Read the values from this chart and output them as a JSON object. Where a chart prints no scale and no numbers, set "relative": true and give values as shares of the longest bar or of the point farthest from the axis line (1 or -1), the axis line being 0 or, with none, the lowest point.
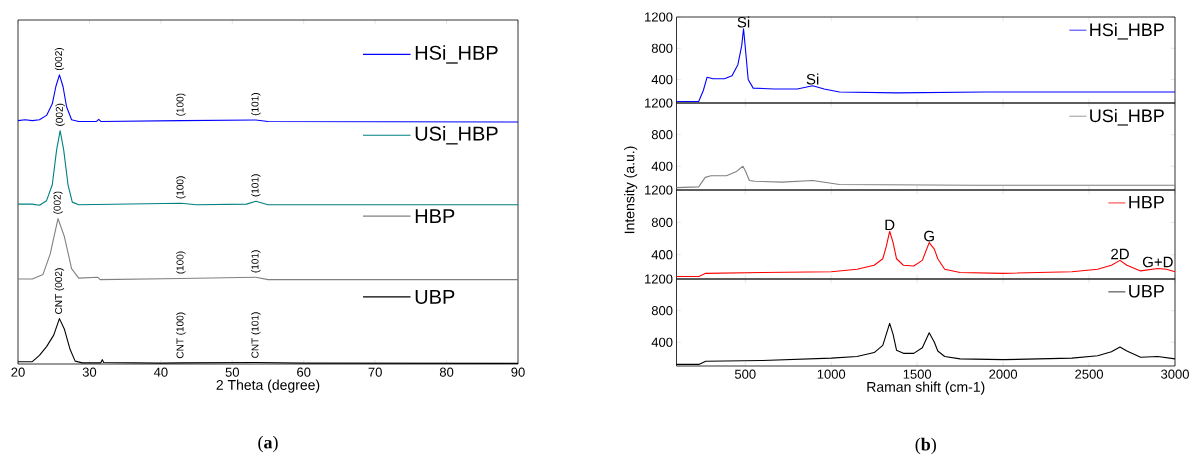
{
  "chart_data": [
    {
      "type": "line",
      "relative": true,
      "xlabel": "2 Theta (degree)",
      "xlim": [
        20,
        90
      ],
      "xticks": [
        20,
        30,
        40,
        50,
        60,
        70,
        80,
        90
      ],
      "legend": "right",
      "series": [
        {
          "name": "HSi_HBP",
          "color": "#0000ff",
          "x": [
            20,
            21,
            22,
            23,
            24,
            24.8,
            25.3,
            25.8,
            26.3,
            26.8,
            27.5,
            28.5,
            31,
            31.3,
            31.6,
            42.8,
            53.3,
            55,
            90
          ],
          "values": [
            0.842,
            0.845,
            0.842,
            0.845,
            0.86,
            0.9,
            0.96,
            1.0,
            0.96,
            0.89,
            0.845,
            0.839,
            0.839,
            0.846,
            0.839,
            0.842,
            0.844,
            0.839,
            0.837
          ]
        },
        {
          "name": "USi_HBP",
          "color": "#008080",
          "x": [
            20,
            22,
            23,
            24,
            24.8,
            25.4,
            25.9,
            26.4,
            27,
            27.6,
            28.5,
            42.8,
            45,
            52,
            53.3,
            55,
            90
          ],
          "values": [
            0.553,
            0.553,
            0.549,
            0.565,
            0.62,
            0.74,
            0.807,
            0.74,
            0.62,
            0.56,
            0.551,
            0.556,
            0.551,
            0.553,
            0.563,
            0.551,
            0.551
          ]
        },
        {
          "name": "HBP",
          "color": "#808080",
          "x": [
            20,
            22,
            23.5,
            24.5,
            25.6,
            26.5,
            27.5,
            28.5,
            31.2,
            31.5,
            42.8,
            53.3,
            55,
            90
          ],
          "values": [
            0.294,
            0.294,
            0.31,
            0.38,
            0.503,
            0.44,
            0.33,
            0.297,
            0.3,
            0.292,
            0.296,
            0.3,
            0.292,
            0.292
          ]
        },
        {
          "name": "UBP",
          "color": "#000000",
          "x": [
            20,
            22,
            23,
            24,
            25,
            25.8,
            26.5,
            27.3,
            28,
            29,
            31.6,
            31.8,
            32,
            40,
            42.8,
            53.3,
            60,
            90
          ],
          "values": [
            0.008,
            0.008,
            0.03,
            0.06,
            0.1,
            0.157,
            0.12,
            0.05,
            0.01,
            0.004,
            0.004,
            0.015,
            0.005,
            0.003,
            0.004,
            0.005,
            0.003,
            0.002
          ]
        }
      ],
      "annotations": [
        {
          "text": "(002)",
          "x": 25.8,
          "y": 1.0
        },
        {
          "text": "(100)",
          "x": 42.8,
          "y": 0.842
        },
        {
          "text": "(101)",
          "x": 53.3,
          "y": 0.844
        },
        {
          "text": "(002)",
          "x": 25.9,
          "y": 0.807
        },
        {
          "text": "(100)",
          "x": 42.8,
          "y": 0.556
        },
        {
          "text": "(101)",
          "x": 53.3,
          "y": 0.563
        },
        {
          "text": "(002)",
          "x": 25.6,
          "y": 0.503
        },
        {
          "text": "(100)",
          "x": 42.8,
          "y": 0.296
        },
        {
          "text": "(101)",
          "x": 53.3,
          "y": 0.3
        },
        {
          "text": "CNT (002)",
          "x": 25.8,
          "y": 0.157
        },
        {
          "text": "CNT (100)",
          "x": 42.8,
          "y": 0.004
        },
        {
          "text": "CNT (101)",
          "x": 53.3,
          "y": 0.005
        },
        "(**a**)"
      ]
    },
    {
      "type": "line",
      "xlim": [
        100,
        3000
      ],
      "xticks": [
        500,
        1000,
        1500,
        2000,
        2500,
        3000
      ],
      "ylim": [
        100,
        1200
      ],
      "yticks": [
        400,
        800,
        1200
      ],
      "tick_labels": "y",
      "legend": "top right",
      "series": [
        {
          "name": "HSi_HBP",
          "color": "#0000ff",
          "x": [
            100,
            229,
            256,
            278,
            312,
            379,
            423,
            457,
            479,
            490,
            501,
            517,
            546,
            669,
            803,
            892,
            959,
            1048,
            1383,
            1896,
            3000
          ],
          "values": [
            120,
            120,
            260,
            430,
            410,
            410,
            450,
            590,
            830,
            1050,
            790,
            400,
            290,
            280,
            280,
            320,
            280,
            240,
            230,
            240,
            240
          ]
        }
      ],
      "annotations": [
        {
          "text": "Si",
          "x": 490,
          "y": 1050
        },
        {
          "text": "Si",
          "x": 892,
          "y": 320
        }
      ]
    },
    {
      "type": "line",
      "xlim": [
        100,
        3000
      ],
      "xticks": [
        500,
        1000,
        1500,
        2000,
        2500,
        3000
      ],
      "ylim": [
        100,
        1200
      ],
      "yticks": [
        400,
        800,
        1200
      ],
      "tick_labels": "y",
      "legend": "top right",
      "series": [
        {
          "name": "USi_HBP",
          "color": "#808080",
          "x": [
            100,
            229,
            267,
            301,
            390,
            446,
            486,
            501,
            524,
            557,
            713,
            892,
            1048,
            1829,
            3000
          ],
          "values": [
            130,
            140,
            260,
            280,
            280,
            330,
            400,
            340,
            220,
            210,
            200,
            220,
            170,
            160,
            160
          ]
        }
      ]
    },
    {
      "type": "line",
      "ylabel": "Intensity (a.u.)",
      "xlim": [
        100,
        3000
      ],
      "xticks": [
        500,
        1000,
        1500,
        2000,
        2500,
        3000
      ],
      "ylim": [
        100,
        1200
      ],
      "yticks": [
        400,
        800,
        1200
      ],
      "tick_labels": "y",
      "legend": "top right",
      "series": [
        {
          "name": "HBP",
          "color": "#ff0000",
          "x": [
            100,
            230,
            270,
            600,
            1000,
            1150,
            1250,
            1300,
            1320,
            1340,
            1360,
            1380,
            1420,
            1480,
            1530,
            1570,
            1600,
            1620,
            1660,
            1750,
            2000,
            2400,
            2550,
            2630,
            2680,
            2720,
            2800,
            2900,
            2950,
            3000
          ],
          "values": [
            130,
            130,
            170,
            180,
            190,
            220,
            270,
            350,
            500,
            690,
            550,
            350,
            270,
            260,
            330,
            550,
            470,
            350,
            220,
            180,
            170,
            190,
            220,
            270,
            330,
            270,
            200,
            230,
            220,
            190
          ]
        }
      ],
      "annotations": [
        {
          "text": "D",
          "x": 1340,
          "y": 690
        },
        {
          "text": "G",
          "x": 1570,
          "y": 550
        },
        {
          "text": "2D",
          "x": 2680,
          "y": 330
        },
        {
          "text": "G+D",
          "x": 2900,
          "y": 230
        }
      ]
    },
    {
      "type": "line",
      "xlabel": "Raman shift (cm-1)",
      "xlim": [
        100,
        3000
      ],
      "xticks": [
        500,
        1000,
        1500,
        2000,
        2500,
        3000
      ],
      "ylim": [
        100,
        1200
      ],
      "yticks": [
        400,
        800,
        1200
      ],
      "legend": "top right",
      "series": [
        {
          "name": "UBP",
          "color": "#000000",
          "x": [
            100,
            230,
            270,
            600,
            1000,
            1150,
            1250,
            1300,
            1340,
            1360,
            1380,
            1420,
            1480,
            1530,
            1570,
            1600,
            1620,
            1660,
            1750,
            2000,
            2400,
            2550,
            2630,
            2680,
            2720,
            2800,
            2900,
            3000
          ],
          "values": [
            120,
            120,
            160,
            170,
            200,
            220,
            270,
            360,
            640,
            500,
            300,
            260,
            260,
            330,
            520,
            400,
            290,
            220,
            190,
            180,
            200,
            230,
            280,
            340,
            290,
            210,
            220,
            190
          ]
        }
      ],
      "annotations": [
        "(**b**)"
      ]
    }
  ]
}
